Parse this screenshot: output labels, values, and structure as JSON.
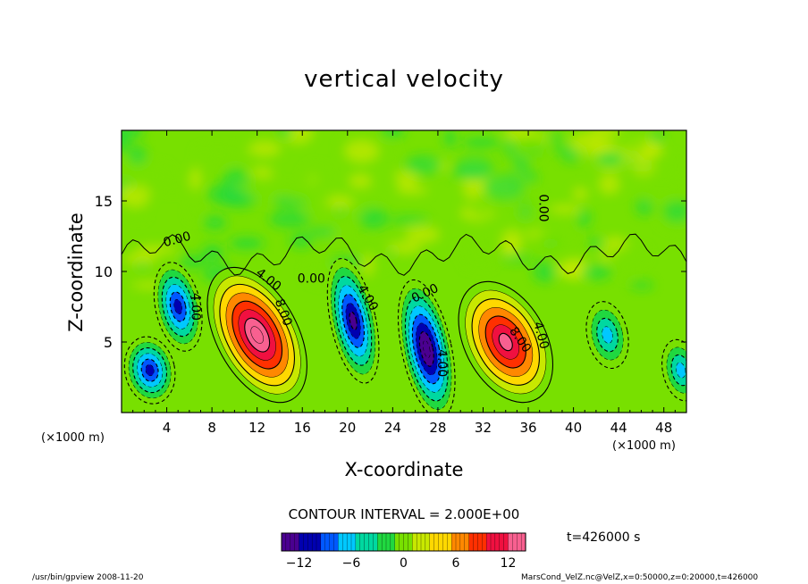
{
  "chart_data": {
    "type": "heatmap",
    "title": "vertical velocity",
    "xlabel": "X-coordinate",
    "ylabel": "Z-coordinate",
    "x_scale_label": "(×1000 m)",
    "xlim": [
      0,
      50
    ],
    "ylim": [
      0,
      20
    ],
    "xticks": [
      "4",
      "8",
      "12",
      "16",
      "20",
      "24",
      "28",
      "32",
      "36",
      "40",
      "44",
      "48"
    ],
    "yticks": [
      "5",
      "10",
      "15"
    ],
    "contour_interval_text": "CONTOUR INTERVAL = 2.000E+00",
    "contour_labels": [
      "0.00",
      "4.00",
      "8.00"
    ],
    "colorbar": {
      "range": [
        -14,
        14
      ],
      "ticks": [
        "−12",
        "−6",
        "0",
        "6",
        "12"
      ],
      "colors": [
        "#4a0090",
        "#0000b0",
        "#0058ff",
        "#00c8ff",
        "#00d8a0",
        "#20d840",
        "#78e000",
        "#c8e800",
        "#ffd800",
        "#ff8800",
        "#ff3000",
        "#f01040",
        "#f86090"
      ]
    },
    "cells": [
      {
        "x": 2.5,
        "z": 3.0,
        "w": -10,
        "rx": 2.2,
        "rz": 2.4
      },
      {
        "x": 5.0,
        "z": 7.5,
        "w": -10,
        "rx": 2.0,
        "rz": 3.2
      },
      {
        "x": 12.0,
        "z": 5.5,
        "w": 13,
        "rx": 3.6,
        "rz": 5.2
      },
      {
        "x": 20.5,
        "z": 6.5,
        "w": -12,
        "rx": 2.0,
        "rz": 4.5
      },
      {
        "x": 27.0,
        "z": 4.5,
        "w": -13,
        "rx": 2.2,
        "rz": 5.0
      },
      {
        "x": 34.0,
        "z": 5.0,
        "w": 12,
        "rx": 3.6,
        "rz": 4.6
      },
      {
        "x": 43.0,
        "z": 5.5,
        "w": -6,
        "rx": 1.8,
        "rz": 2.4
      },
      {
        "x": 49.5,
        "z": 3.0,
        "w": -6,
        "rx": 1.6,
        "rz": 2.2
      }
    ]
  },
  "time_label": "t=426000  s",
  "footer": {
    "left": "/usr/bin/gpview   2008-11-20",
    "right": "MarsCond_VelZ.nc@VelZ,x=0:50000,z=0:20000,t=426000"
  }
}
